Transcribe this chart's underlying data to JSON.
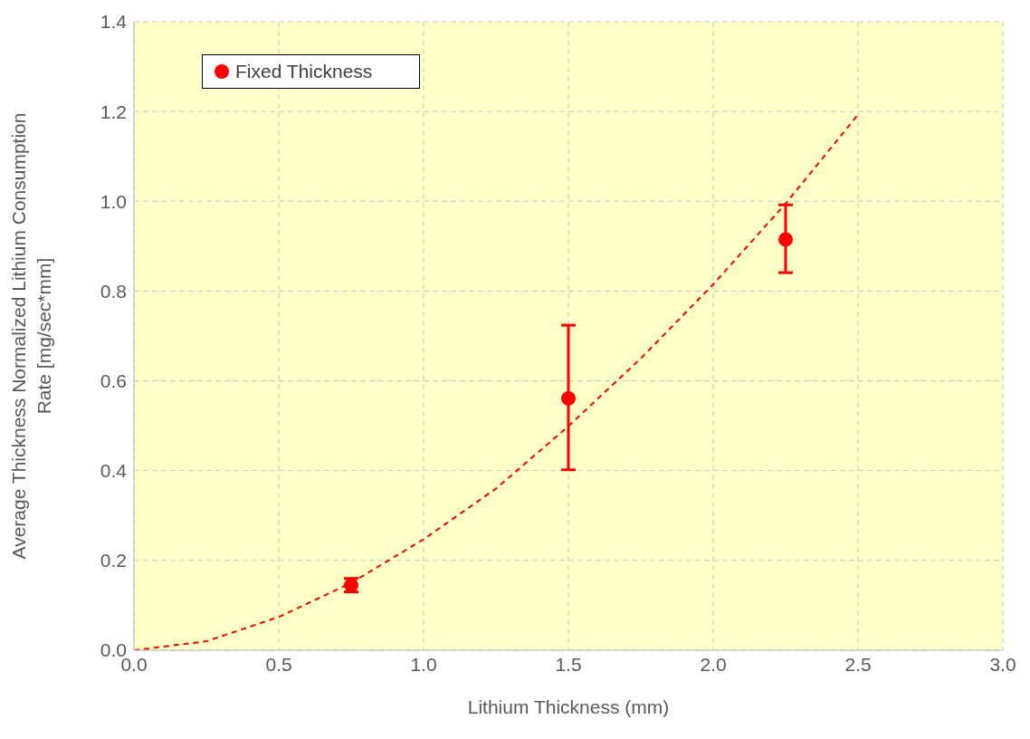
{
  "chart_data": {
    "type": "scatter",
    "xlabel": "Lithium Thickness (mm)",
    "ylabel": "Average Thickness Normalized Lithium Consumption Rate [mg/sec*mm]",
    "xlim": [
      0,
      3
    ],
    "xticks": [
      {
        "value": 0,
        "label": "0.0"
      },
      {
        "value": 0.5,
        "label": "0.5"
      },
      {
        "value": 1,
        "label": "1.0"
      },
      {
        "value": 1.5,
        "label": "1.5"
      },
      {
        "value": 2,
        "label": "2.0"
      },
      {
        "value": 2.5,
        "label": "2.5"
      },
      {
        "value": 3,
        "label": "3.0"
      }
    ],
    "ylim": [
      0,
      1.4
    ],
    "yticks": [
      {
        "value": 0,
        "label": "0.0"
      },
      {
        "value": 0.2,
        "label": "0.2"
      },
      {
        "value": 0.4,
        "label": "0.4"
      },
      {
        "value": 0.6,
        "label": "0.6"
      },
      {
        "value": 0.8,
        "label": "0.8"
      },
      {
        "value": 1,
        "label": "1.0"
      },
      {
        "value": 1.2,
        "label": "1.2"
      },
      {
        "value": 1.4,
        "label": "1.4"
      }
    ],
    "grid": true,
    "legend": "top left",
    "marker": "circle",
    "series": [
      {
        "name": "Fixed Thickness",
        "type": "scatter",
        "color": "#ff0000",
        "x": [
          0.75,
          1.5,
          2.25
        ],
        "values": [
          0.145,
          0.561,
          0.915
        ],
        "errors": [
          [
            0.13,
            0.16
          ],
          [
            0.402,
            0.724
          ],
          [
            0.841,
            0.992
          ]
        ]
      },
      {
        "type": "line",
        "color": "#ff0000",
        "line_style": "dashed",
        "marker": "none",
        "x": [
          0,
          0.25,
          0.5,
          0.75,
          1,
          1.25,
          1.5,
          1.75,
          2,
          2.25,
          2.5
        ],
        "values": [
          0,
          0.02,
          0.074,
          0.15,
          0.247,
          0.36,
          0.499,
          0.65,
          0.815,
          0.995,
          1.193
        ]
      }
    ]
  }
}
